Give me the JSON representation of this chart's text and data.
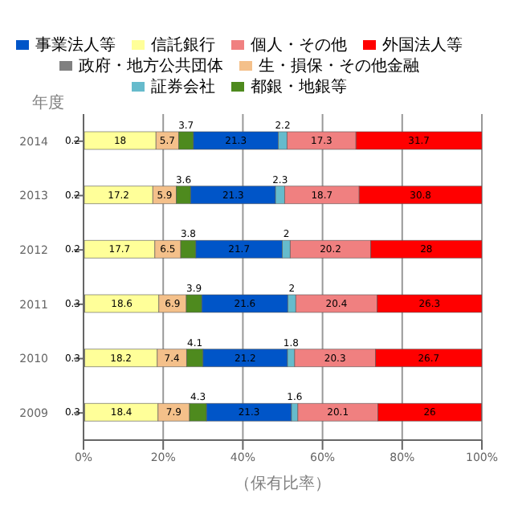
{
  "chart_data": {
    "type": "bar",
    "orientation": "horizontal",
    "stacked": true,
    "categories": [
      "2014",
      "2013",
      "2012",
      "2011",
      "2010",
      "2009"
    ],
    "series": [
      {
        "name": "政府・地方公共団体",
        "color": "#808080",
        "values": [
          0.2,
          0.2,
          0.2,
          0.3,
          0.3,
          0.3
        ]
      },
      {
        "name": "信託銀行",
        "color": "#ffff99",
        "values": [
          18.0,
          17.2,
          17.7,
          18.6,
          18.2,
          18.4
        ]
      },
      {
        "name": "生・損保・その他金融",
        "color": "#f4c08a",
        "values": [
          5.7,
          5.9,
          6.5,
          6.9,
          7.4,
          7.9
        ]
      },
      {
        "name": "都銀・地銀等",
        "color": "#4e8a1e",
        "values": [
          3.7,
          3.6,
          3.8,
          3.9,
          4.1,
          4.3
        ]
      },
      {
        "name": "事業法人等",
        "color": "#0055c8",
        "values": [
          21.3,
          21.3,
          21.7,
          21.6,
          21.2,
          21.3
        ]
      },
      {
        "name": "証券会社",
        "color": "#66bbcc",
        "values": [
          2.2,
          2.3,
          2.0,
          2.0,
          1.8,
          1.6
        ]
      },
      {
        "name": "個人・その他",
        "color": "#f08080",
        "values": [
          17.3,
          18.7,
          20.2,
          20.4,
          20.3,
          20.1
        ]
      },
      {
        "name": "外国法人等",
        "color": "#ff0000",
        "values": [
          31.7,
          30.8,
          28.0,
          26.3,
          26.7,
          26.0
        ]
      }
    ],
    "xlim": [
      0,
      100
    ],
    "xticks": [
      {
        "value": 0,
        "label": "0%"
      },
      {
        "value": 20,
        "label": "20%"
      },
      {
        "value": 40,
        "label": "40%"
      },
      {
        "value": 60,
        "label": "60%"
      },
      {
        "value": 80,
        "label": "80%"
      },
      {
        "value": 100,
        "label": "100%"
      }
    ],
    "ylabel": "年度",
    "xlabel": "（保有比率）",
    "grid": "x",
    "legend": "top",
    "data_labels": true
  }
}
